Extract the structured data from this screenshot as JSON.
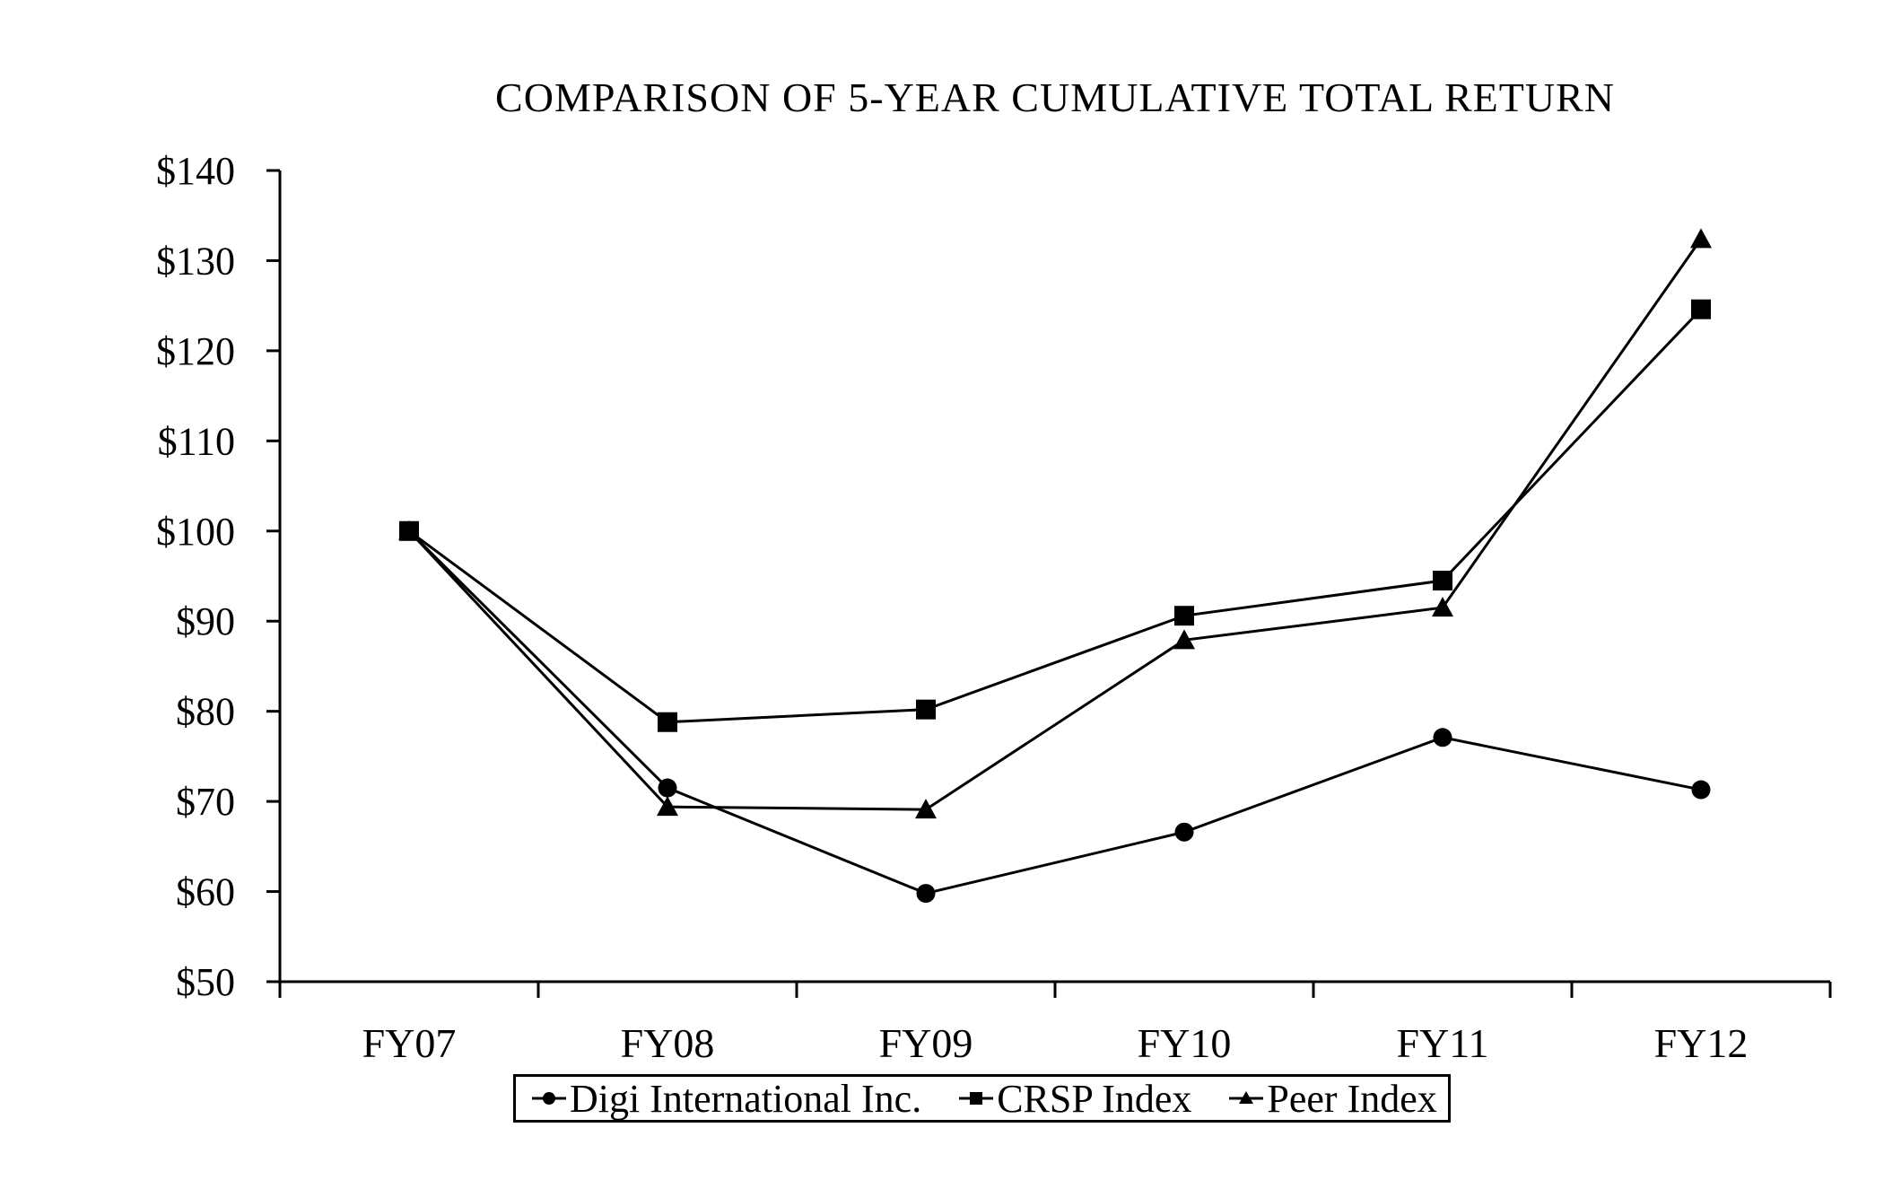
{
  "chart_data": {
    "type": "line",
    "title": "COMPARISON OF 5-YEAR CUMULATIVE TOTAL RETURN",
    "categories": [
      "FY07",
      "FY08",
      "FY09",
      "FY10",
      "FY11",
      "FY12"
    ],
    "series": [
      {
        "name": "Digi International Inc.",
        "marker": "circle",
        "values": [
          100,
          71.5,
          59.8,
          66.6,
          77.1,
          71.3
        ]
      },
      {
        "name": "CRSP Index",
        "marker": "square",
        "values": [
          100,
          78.8,
          80.2,
          90.6,
          94.5,
          124.6
        ]
      },
      {
        "name": "Peer Index",
        "marker": "triangle",
        "values": [
          100,
          69.4,
          69.1,
          87.9,
          91.5,
          132.4
        ]
      }
    ],
    "y_axis": {
      "min": 50,
      "max": 140,
      "step": 10,
      "tick_prefix": "$"
    },
    "y_tick_labels": [
      "$50",
      "$60",
      "$70",
      "$80",
      "$90",
      "$100",
      "$110",
      "$120",
      "$130",
      "$140"
    ],
    "x_axis": {
      "label_count": 6
    },
    "legend_position": "bottom",
    "grid": false,
    "colors": {
      "line": "#000000",
      "marker": "#000000",
      "background": "#ffffff",
      "text": "#000000"
    }
  }
}
